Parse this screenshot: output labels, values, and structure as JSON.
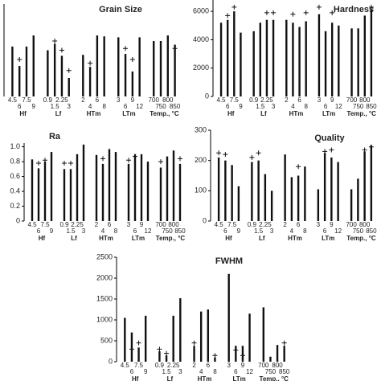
{
  "chart_data": [
    {
      "type": "bar",
      "title": "Grain Size",
      "groups": [
        "Hf",
        "Lf",
        "HTm",
        "LTm",
        "Temp., °C"
      ],
      "categories": [
        "4.5",
        "6",
        "7.5",
        "9",
        "0.9",
        "1.5",
        "2.25",
        "3",
        "2",
        "4",
        "6",
        "8",
        "3",
        "6",
        "9",
        "12",
        "700",
        "750",
        "800",
        "850"
      ],
      "values": [
        54,
        33,
        54,
        66,
        50,
        57,
        44,
        20,
        45,
        32,
        66,
        65,
        64,
        46,
        27,
        64,
        60,
        60,
        66,
        56
      ],
      "markers": [
        null,
        40,
        null,
        null,
        null,
        60,
        50,
        28,
        null,
        36,
        null,
        null,
        null,
        52,
        40,
        null,
        null,
        null,
        null,
        52
      ],
      "ylim": [
        0,
        100
      ]
    },
    {
      "type": "bar",
      "title": "Hardness",
      "groups": [
        "Hf",
        "Lf",
        "HTm",
        "LTm",
        "Temp., °C"
      ],
      "categories": [
        "4.5",
        "6",
        "7.5",
        "9",
        "0.9",
        "1.5",
        "2.25",
        "3",
        "2",
        "4",
        "6",
        "8",
        "3",
        "6",
        "9",
        "12",
        "700",
        "750",
        "800",
        "850"
      ],
      "values": [
        5200,
        5400,
        6000,
        4500,
        4600,
        5200,
        5400,
        5400,
        5400,
        5200,
        4900,
        5300,
        5800,
        4600,
        5200,
        5000,
        4800,
        4800,
        5700,
        6100
      ],
      "markers": [
        null,
        5700,
        6300,
        null,
        null,
        null,
        5900,
        5900,
        null,
        5800,
        null,
        5900,
        6300,
        null,
        5900,
        null,
        null,
        null,
        null,
        6300
      ],
      "ylim": [
        0,
        6800
      ],
      "yticks": [
        0,
        2000,
        4000,
        6000
      ]
    },
    {
      "type": "bar",
      "title": "Ra",
      "groups": [
        "Hf",
        "Lf",
        "HTm",
        "LTm",
        "Temp., °C"
      ],
      "categories": [
        "4.5",
        "6",
        "7.5",
        "9",
        "0.9",
        "1.5",
        "2.25",
        "3",
        "2",
        "4",
        "6",
        "8",
        "3",
        "6",
        "9",
        "12",
        "700",
        "750",
        "800",
        "850"
      ],
      "values": [
        0.83,
        0.71,
        0.8,
        0.93,
        0.7,
        0.7,
        0.9,
        1.03,
        0.89,
        0.77,
        0.97,
        0.93,
        0.77,
        0.9,
        0.9,
        0.8,
        0.72,
        0.87,
        0.95,
        0.77
      ],
      "markers": [
        null,
        0.78,
        0.82,
        null,
        0.78,
        0.78,
        null,
        null,
        null,
        0.84,
        null,
        null,
        0.82,
        0.87,
        null,
        null,
        0.8,
        null,
        null,
        0.84
      ],
      "ylim": [
        0,
        1.05
      ],
      "yticks": [
        0,
        0.2,
        0.4,
        0.6,
        0.8,
        {
          "value": 1,
          "label": "1.0"
        }
      ]
    },
    {
      "type": "bar",
      "title": "Quality",
      "groups": [
        "Hf",
        "Lf",
        "HTm",
        "LTm",
        "Temp., °C"
      ],
      "categories": [
        "4.5",
        "6",
        "7.5",
        "9",
        "0.9",
        "1.5",
        "2.25",
        "3",
        "2",
        "4",
        "6",
        "8",
        "3",
        "6",
        "9",
        "12",
        "700",
        "750",
        "800",
        "850"
      ],
      "values": [
        210,
        200,
        185,
        115,
        195,
        200,
        155,
        100,
        220,
        145,
        150,
        180,
        105,
        225,
        210,
        195,
        105,
        140,
        230,
        250
      ],
      "markers": [
        225,
        220,
        null,
        null,
        210,
        225,
        null,
        null,
        null,
        null,
        180,
        null,
        null,
        230,
        235,
        null,
        null,
        null,
        235,
        245
      ],
      "ylim": [
        0,
        300
      ],
      "yticks": [
        0,
        100,
        200,
        300
      ]
    },
    {
      "type": "bar",
      "title": "FWHM",
      "groups": [
        "Hf",
        "Lf",
        "HTm",
        "LTm",
        "Temp., °C"
      ],
      "categories": [
        "4.5",
        "6",
        "7.5",
        "9",
        "0.9",
        "1.5",
        "2.25",
        "3",
        "2",
        "4",
        "6",
        "8",
        "3",
        "6",
        "9",
        "12",
        "700",
        "750",
        "800",
        "850"
      ],
      "values": [
        1050,
        700,
        340,
        1100,
        250,
        150,
        1100,
        1520,
        380,
        1200,
        1250,
        100,
        2100,
        380,
        380,
        1150,
        1300,
        120,
        400,
        380
      ],
      "markers": [
        null,
        300,
        450,
        null,
        300,
        200,
        null,
        null,
        450,
        null,
        null,
        150,
        null,
        280,
        150,
        null,
        null,
        null,
        null,
        450
      ],
      "ylim": [
        0,
        2500
      ],
      "yticks": [
        0,
        500,
        1000,
        1500,
        2000,
        2500
      ]
    }
  ]
}
